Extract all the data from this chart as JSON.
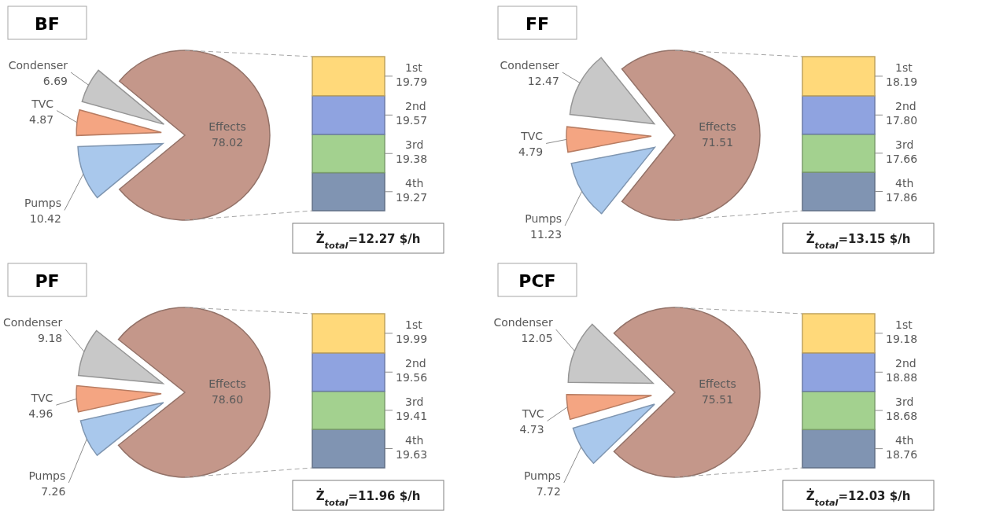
{
  "chart_data": [
    {
      "type": "pie",
      "title": "BF",
      "categories": [
        "Effects",
        "Pumps",
        "TVC",
        "Condenser"
      ],
      "values": [
        78.02,
        10.42,
        4.87,
        6.69
      ],
      "colors": [
        "#c4978a",
        "#a9c8ec",
        "#f4a582",
        "#c8c8c8"
      ],
      "data_labels": true
    },
    {
      "type": "bar",
      "stacked": true,
      "categories": [
        null
      ],
      "series": [
        {
          "name": "4th",
          "color": "#8094b2",
          "values": [
            19.27
          ]
        },
        {
          "name": "3rd",
          "color": "#a3d18f",
          "values": [
            19.38
          ]
        },
        {
          "name": "2nd",
          "color": "#8fa3e0",
          "values": [
            19.57
          ]
        },
        {
          "name": "1st",
          "color": "#ffd97a",
          "values": [
            19.79
          ]
        }
      ],
      "data_labels": true,
      "annotations": [
        "Ż$_{total}$=12.27 $/h"
      ]
    },
    {
      "type": "pie",
      "title": "FF",
      "categories": [
        "Effects",
        "Pumps",
        "TVC",
        "Condenser"
      ],
      "values": [
        71.51,
        11.23,
        4.79,
        12.47
      ],
      "colors": [
        "#c4978a",
        "#a9c8ec",
        "#f4a582",
        "#c8c8c8"
      ],
      "data_labels": true
    },
    {
      "type": "bar",
      "stacked": true,
      "categories": [
        null
      ],
      "series": [
        {
          "name": "4th",
          "color": "#8094b2",
          "values": [
            17.86
          ],
          "value_labels": [
            "17.86"
          ]
        },
        {
          "name": "3rd",
          "color": "#a3d18f",
          "values": [
            17.66
          ],
          "value_labels": [
            "17.66"
          ]
        },
        {
          "name": "2nd",
          "color": "#8fa3e0",
          "values": [
            17.8
          ],
          "value_labels": [
            "17.80"
          ]
        },
        {
          "name": "1st",
          "color": "#ffd97a",
          "values": [
            18.19
          ],
          "value_labels": [
            "18.19"
          ]
        }
      ],
      "annotations": [
        "Ż$_{total}$=13.15 $/h"
      ]
    },
    {
      "type": "pie",
      "title": "PF",
      "categories": [
        "Effects",
        "Pumps",
        "TVC",
        "Condenser"
      ],
      "values": [
        78.6,
        7.26,
        4.96,
        9.18
      ],
      "value_labels": [
        "78.60",
        "7.26",
        "4.96",
        "9.18"
      ],
      "colors": [
        "#c4978a",
        "#a9c8ec",
        "#f4a582",
        "#c8c8c8"
      ]
    },
    {
      "type": "bar",
      "stacked": true,
      "categories": [
        null
      ],
      "series": [
        {
          "name": "4th",
          "color": "#8094b2",
          "values": [
            19.63
          ]
        },
        {
          "name": "3rd",
          "color": "#a3d18f",
          "values": [
            19.41
          ]
        },
        {
          "name": "2nd",
          "color": "#8fa3e0",
          "values": [
            19.56
          ]
        },
        {
          "name": "1st",
          "color": "#ffd97a",
          "values": [
            19.99
          ]
        }
      ],
      "data_labels": true,
      "annotations": [
        "Ż$_{total}$=11.96 $/h"
      ]
    },
    {
      "type": "pie",
      "title": "PCF",
      "categories": [
        "Effects",
        "Pumps",
        "TVC",
        "Condenser"
      ],
      "values": [
        75.51,
        7.72,
        4.73,
        12.05
      ],
      "colors": [
        "#c4978a",
        "#a9c8ec",
        "#f4a582",
        "#c8c8c8"
      ],
      "data_labels": true
    },
    {
      "type": "bar",
      "stacked": true,
      "categories": [
        null
      ],
      "series": [
        {
          "name": "4th",
          "color": "#8094b2",
          "values": [
            18.76
          ]
        },
        {
          "name": "3rd",
          "color": "#a3d18f",
          "values": [
            18.68
          ]
        },
        {
          "name": "2nd",
          "color": "#8fa3e0",
          "values": [
            18.88
          ]
        },
        {
          "name": "1st",
          "color": "#ffd97a",
          "values": [
            19.18
          ]
        }
      ],
      "data_labels": true,
      "annotations": [
        "Ż$_{total}$=12.03 $/h"
      ]
    }
  ]
}
